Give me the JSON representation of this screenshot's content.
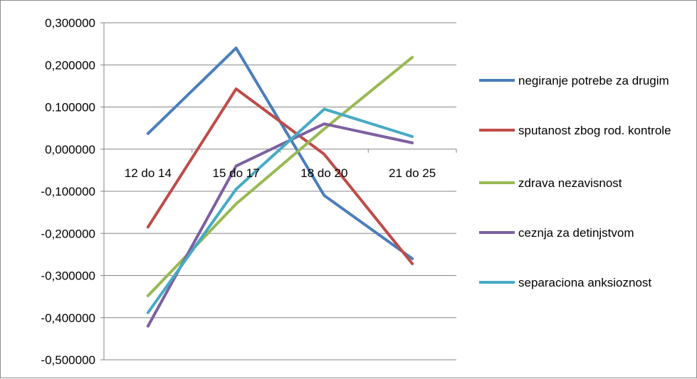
{
  "chart_data": {
    "type": "line",
    "categories": [
      "12 do 14",
      "15 do 17",
      "18 do 20",
      "21 do 25"
    ],
    "series": [
      {
        "name": "negiranje potrebe za drugim",
        "color": "#4a7ebb",
        "values": [
          0.037,
          0.24,
          -0.11,
          -0.26
        ]
      },
      {
        "name": "sputanost zbog rod. kontrole",
        "color": "#be4b48",
        "values": [
          -0.185,
          0.143,
          -0.012,
          -0.272
        ]
      },
      {
        "name": "zdrava nezavisnost",
        "color": "#98b954",
        "values": [
          -0.348,
          -0.13,
          0.048,
          0.218
        ]
      },
      {
        "name": "ceznja za detinjstvom",
        "color": "#7d60a0",
        "values": [
          -0.42,
          -0.04,
          0.06,
          0.015
        ]
      },
      {
        "name": "separaciona anksioznost",
        "color": "#46aac5",
        "values": [
          -0.388,
          -0.095,
          0.095,
          0.03
        ]
      }
    ],
    "ylim": [
      -0.5,
      0.3
    ],
    "yticks": [
      "0,300000",
      "0,200000",
      "0.100000",
      "0,000000",
      "-0,100000",
      "-0,200000",
      "-0,300000",
      "-0,400000",
      "-0,500000"
    ],
    "grid": true,
    "legend": "right"
  }
}
